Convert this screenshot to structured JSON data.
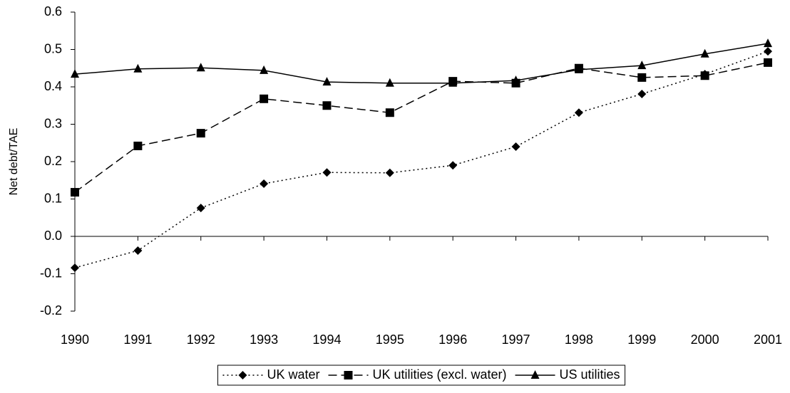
{
  "chart_data": {
    "type": "line",
    "y_label": "Net debt/TAE",
    "x": [
      1990,
      1991,
      1992,
      1993,
      1994,
      1995,
      1996,
      1997,
      1998,
      1999,
      2000,
      2001
    ],
    "xlim": [
      1990,
      2001
    ],
    "xticks": [
      1990,
      1991,
      1992,
      1993,
      1994,
      1995,
      1996,
      1997,
      1998,
      1999,
      2000,
      2001
    ],
    "ylim": [
      -0.2,
      0.6
    ],
    "yticks": [
      -0.2,
      -0.1,
      {
        "value": 0,
        "label": "0.0"
      },
      0.1,
      0.2,
      0.3,
      0.4,
      0.5,
      0.6
    ],
    "grid": false,
    "legend": "bottom",
    "series": [
      {
        "name": "UK water",
        "color": "#000000",
        "marker": "diamond",
        "line_style": "dotted",
        "values": [
          -0.084,
          -0.038,
          0.076,
          0.141,
          0.171,
          0.17,
          0.19,
          0.24,
          0.331,
          0.381,
          0.434,
          0.495
        ]
      },
      {
        "name": "UK utilities (excl. water)",
        "color": "#000000",
        "marker": "square",
        "line_style": "dashed",
        "values": [
          0.118,
          0.242,
          0.276,
          0.368,
          0.35,
          0.331,
          0.415,
          0.41,
          0.45,
          0.425,
          0.43,
          0.465
        ]
      },
      {
        "name": "US utilities",
        "color": "#000000",
        "marker": "triangle",
        "line_style": "solid",
        "values": [
          0.434,
          0.448,
          0.451,
          0.444,
          0.413,
          0.41,
          0.41,
          0.417,
          0.446,
          0.457,
          0.488,
          0.516
        ]
      }
    ]
  }
}
